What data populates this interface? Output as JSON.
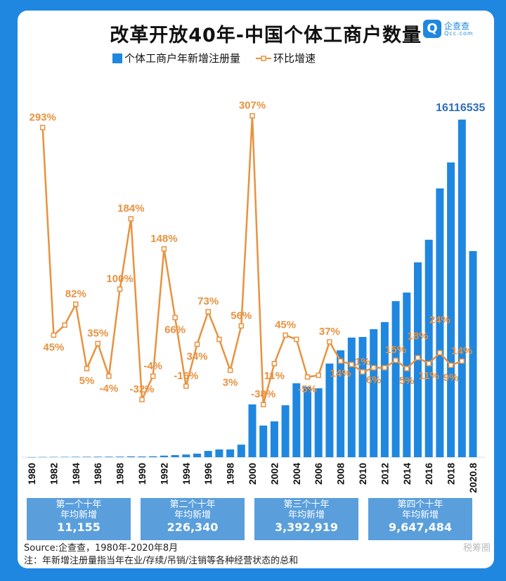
{
  "title": "改革开放40年-中国个体工商户数量",
  "logo": {
    "name": "企查查",
    "sub": "Qcc.com"
  },
  "chart_data": {
    "type": "bar+line",
    "title": "改革开放40年-中国个体工商户数量",
    "legend": [
      "个体工商户年新增注册量",
      "环比增速"
    ],
    "legend_placement": "top",
    "colors": {
      "bars": "#1f87e0",
      "line": "#e8923f"
    },
    "x_tick_labels": [
      "1980",
      "1982",
      "1984",
      "1986",
      "1988",
      "1990",
      "1992",
      "1994",
      "1996",
      "1998",
      "2000",
      "2002",
      "2004",
      "2006",
      "2008",
      "2010",
      "2012",
      "2014",
      "2016",
      "2018",
      "2020.8"
    ],
    "years": [
      1980,
      1981,
      1982,
      1983,
      1984,
      1985,
      1986,
      1987,
      1988,
      1989,
      1990,
      1991,
      1992,
      1993,
      1994,
      1995,
      1996,
      1997,
      1998,
      1999,
      2000,
      2001,
      2002,
      2003,
      2004,
      2005,
      2006,
      2007,
      2008,
      2009,
      2010,
      2011,
      2012,
      2013,
      2014,
      2015,
      2016,
      2017,
      2018,
      2019,
      2020
    ],
    "series": [
      {
        "name": "个体工商户年新增注册量",
        "type": "bar",
        "values": [
          2500,
          9800,
          14000,
          17000,
          21000,
          22000,
          25000,
          26000,
          28000,
          40000,
          35000,
          45000,
          75000,
          100000,
          130000,
          170000,
          300000,
          370000,
          370000,
          600000,
          2520000,
          1510000,
          1710000,
          2480000,
          3530000,
          3360000,
          3290000,
          4470000,
          5100000,
          5710000,
          5740000,
          6110000,
          6450000,
          7450000,
          7860000,
          9300000,
          10380000,
          12830000,
          14070000,
          16116535,
          9840000
        ]
      },
      {
        "name": "环比增速",
        "type": "line",
        "unit": "%",
        "start_year": 1981,
        "values": [
          293,
          45,
          57,
          82,
          5,
          35,
          -4,
          100,
          184,
          -32,
          -4,
          148,
          66,
          -16,
          34,
          73,
          40,
          3,
          56,
          307,
          -38,
          11,
          45,
          40,
          -5,
          -3,
          37,
          14,
          10,
          1,
          6,
          6,
          15,
          5,
          18,
          11,
          24,
          9,
          14
        ]
      }
    ],
    "bar_data_labels": [
      {
        "year": 2019,
        "text": "16116535"
      }
    ],
    "line_data_labels": [
      {
        "year": 1981,
        "text": "293%"
      },
      {
        "year": 1982,
        "text": "45%"
      },
      {
        "year": 1984,
        "text": "82%"
      },
      {
        "year": 1985,
        "text": "5%"
      },
      {
        "year": 1986,
        "text": "35%"
      },
      {
        "year": 1987,
        "text": "-4%"
      },
      {
        "year": 1988,
        "text": "100%"
      },
      {
        "year": 1989,
        "text": "184%"
      },
      {
        "year": 1990,
        "text": "-32%"
      },
      {
        "year": 1991,
        "text": "-4%"
      },
      {
        "year": 1992,
        "text": "148%"
      },
      {
        "year": 1993,
        "text": "66%"
      },
      {
        "year": 1994,
        "text": "-16%"
      },
      {
        "year": 1995,
        "text": "34%"
      },
      {
        "year": 1996,
        "text": "73%"
      },
      {
        "year": 1998,
        "text": "3%"
      },
      {
        "year": 1999,
        "text": "56%"
      },
      {
        "year": 2000,
        "text": "307%"
      },
      {
        "year": 2001,
        "text": "-38%"
      },
      {
        "year": 2002,
        "text": "11%"
      },
      {
        "year": 2003,
        "text": "45%"
      },
      {
        "year": 2005,
        "text": "-5%"
      },
      {
        "year": 2007,
        "text": "37%"
      },
      {
        "year": 2008,
        "text": "14%"
      },
      {
        "year": 2010,
        "text": "1%"
      },
      {
        "year": 2011,
        "text": "6%"
      },
      {
        "year": 2013,
        "text": "15%"
      },
      {
        "year": 2014,
        "text": "5%"
      },
      {
        "year": 2015,
        "text": "18%"
      },
      {
        "year": 2016,
        "text": "11%"
      },
      {
        "year": 2017,
        "text": "24%"
      },
      {
        "year": 2018,
        "text": "9%"
      },
      {
        "year": 2019,
        "text": "14%"
      }
    ]
  },
  "decades": [
    {
      "l1": "第一个十年",
      "l2": "年均新增",
      "value": "11,155"
    },
    {
      "l1": "第二个十年",
      "l2": "年均新增",
      "value": "226,340"
    },
    {
      "l1": "第三个十年",
      "l2": "年均新增",
      "value": "3,392,919"
    },
    {
      "l1": "第四个十年",
      "l2": "年均新增",
      "value": "9,647,484"
    }
  ],
  "source": "Source:企查查，1980年-2020年8月",
  "note": "注：年新增注册量指当年在业/存续/吊销/注销等各种经营状态的总和",
  "watermark": "税筹圈"
}
